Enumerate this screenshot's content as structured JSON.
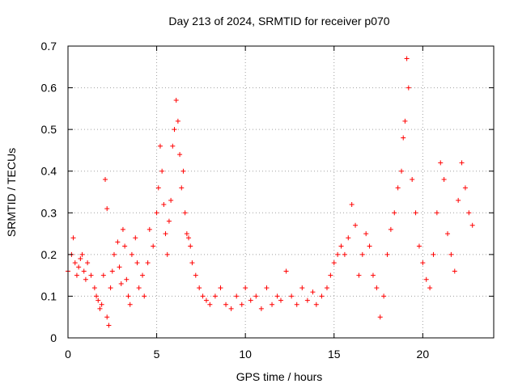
{
  "chart_data": {
    "type": "scatter",
    "title": "Day 213 of 2024, SRMTID for receiver p070",
    "xlabel": "GPS time / hours",
    "ylabel": "SRMTID / TECUs",
    "xlim": [
      0,
      24
    ],
    "ylim": [
      0,
      0.7
    ],
    "x_ticks": [
      0,
      5,
      10,
      15,
      20
    ],
    "y_ticks": [
      0,
      0.1,
      0.2,
      0.3,
      0.4,
      0.5,
      0.6,
      0.7
    ],
    "x_tick_labels": [
      "0",
      "5",
      "10",
      "15",
      "20"
    ],
    "y_tick_labels": [
      "0",
      "0.1",
      "0.2",
      "0.3",
      "0.4",
      "0.5",
      "0.6",
      "0.7"
    ],
    "grid": true,
    "marker": "+",
    "series_color": "#ff0000",
    "series": [
      {
        "name": "SRMTID",
        "x": [
          0.0,
          0.2,
          0.3,
          0.4,
          0.5,
          0.6,
          0.7,
          0.8,
          0.9,
          1.0,
          1.1,
          1.3,
          1.5,
          1.6,
          1.7,
          1.8,
          1.9,
          2.0,
          2.1,
          2.2,
          2.2,
          2.3,
          2.4,
          2.5,
          2.6,
          2.8,
          2.9,
          3.0,
          3.1,
          3.2,
          3.3,
          3.4,
          3.5,
          3.6,
          3.8,
          3.9,
          4.0,
          4.2,
          4.3,
          4.5,
          4.6,
          4.8,
          5.0,
          5.1,
          5.2,
          5.3,
          5.4,
          5.5,
          5.6,
          5.7,
          5.8,
          5.9,
          6.0,
          6.1,
          6.2,
          6.3,
          6.4,
          6.5,
          6.6,
          6.7,
          6.8,
          6.9,
          7.0,
          7.2,
          7.4,
          7.6,
          7.8,
          8.0,
          8.3,
          8.6,
          8.9,
          9.2,
          9.5,
          9.8,
          10.0,
          10.3,
          10.6,
          10.9,
          11.2,
          11.5,
          11.8,
          12.0,
          12.3,
          12.6,
          12.9,
          13.2,
          13.5,
          13.8,
          14.0,
          14.3,
          14.6,
          14.8,
          15.0,
          15.2,
          15.4,
          15.6,
          15.8,
          16.0,
          16.2,
          16.4,
          16.6,
          16.8,
          17.0,
          17.2,
          17.4,
          17.6,
          17.8,
          18.0,
          18.2,
          18.4,
          18.6,
          18.8,
          18.9,
          19.0,
          19.1,
          19.2,
          19.4,
          19.6,
          19.8,
          20.0,
          20.2,
          20.4,
          20.6,
          20.8,
          21.0,
          21.2,
          21.4,
          21.6,
          21.8,
          22.0,
          22.2,
          22.4,
          22.6,
          22.8
        ],
        "y": [
          0.16,
          0.2,
          0.24,
          0.18,
          0.15,
          0.17,
          0.19,
          0.2,
          0.16,
          0.14,
          0.18,
          0.15,
          0.12,
          0.1,
          0.09,
          0.07,
          0.08,
          0.15,
          0.38,
          0.31,
          0.05,
          0.03,
          0.12,
          0.16,
          0.2,
          0.23,
          0.17,
          0.13,
          0.26,
          0.22,
          0.14,
          0.1,
          0.08,
          0.2,
          0.24,
          0.18,
          0.12,
          0.15,
          0.1,
          0.18,
          0.26,
          0.22,
          0.3,
          0.36,
          0.46,
          0.4,
          0.32,
          0.25,
          0.2,
          0.28,
          0.33,
          0.46,
          0.5,
          0.57,
          0.52,
          0.44,
          0.36,
          0.4,
          0.3,
          0.25,
          0.24,
          0.22,
          0.18,
          0.15,
          0.12,
          0.1,
          0.09,
          0.08,
          0.1,
          0.12,
          0.08,
          0.07,
          0.1,
          0.08,
          0.12,
          0.09,
          0.1,
          0.07,
          0.12,
          0.08,
          0.1,
          0.09,
          0.16,
          0.1,
          0.08,
          0.12,
          0.09,
          0.11,
          0.08,
          0.1,
          0.12,
          0.15,
          0.18,
          0.2,
          0.22,
          0.2,
          0.24,
          0.32,
          0.27,
          0.15,
          0.2,
          0.25,
          0.22,
          0.15,
          0.12,
          0.05,
          0.1,
          0.2,
          0.26,
          0.3,
          0.36,
          0.4,
          0.48,
          0.52,
          0.67,
          0.6,
          0.38,
          0.3,
          0.22,
          0.18,
          0.14,
          0.12,
          0.2,
          0.3,
          0.42,
          0.38,
          0.25,
          0.2,
          0.16,
          0.33,
          0.42,
          0.36,
          0.3,
          0.27
        ]
      }
    ]
  }
}
